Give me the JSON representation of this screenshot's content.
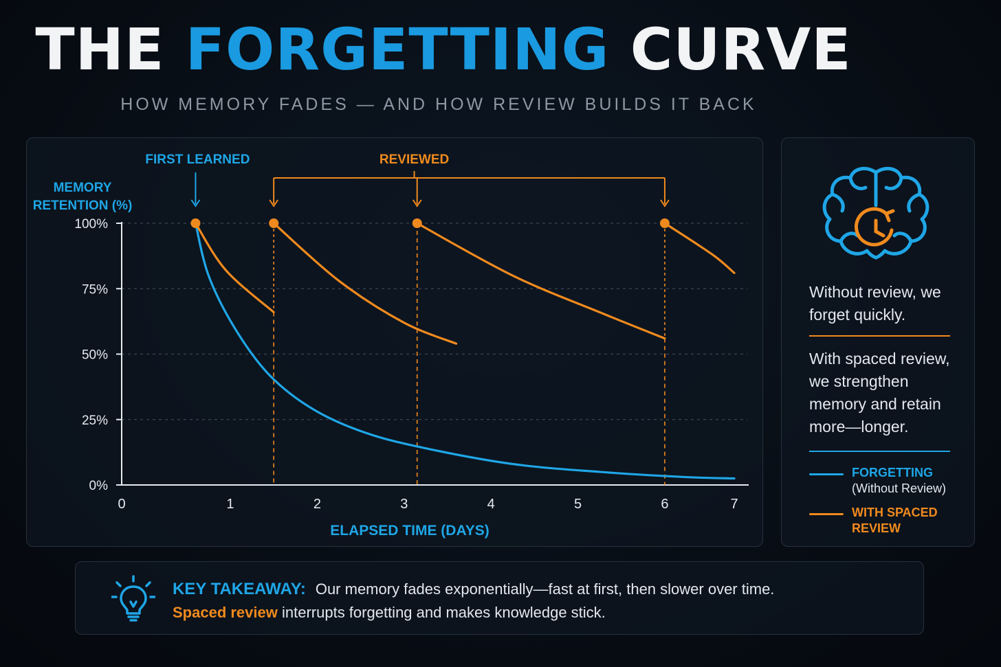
{
  "header": {
    "title_part1": "THE",
    "title_part2": "FORGETTING",
    "title_part3": "CURVE",
    "subtitle": "HOW MEMORY FADES — AND HOW REVIEW BUILDS IT BACK"
  },
  "chart_data": {
    "type": "line",
    "title": "",
    "ylabel_line1": "MEMORY",
    "ylabel_line2": "RETENTION (%)",
    "xlabel": "ELAPSED TIME (DAYS)",
    "xlim": [
      0,
      7.2
    ],
    "ylim": [
      0,
      100
    ],
    "x_ticks": [
      {
        "label": "0",
        "value": 0
      },
      {
        "label": "1",
        "value": 1.25
      },
      {
        "label": "2",
        "value": 2.25
      },
      {
        "label": "3",
        "value": 3.25
      },
      {
        "label": "4",
        "value": 4.25
      },
      {
        "label": "5",
        "value": 5.25
      },
      {
        "label": "6",
        "value": 6.25
      },
      {
        "label": "7",
        "value": 7.05
      }
    ],
    "y_ticks": [
      {
        "label": "0%",
        "value": 0
      },
      {
        "label": "25%",
        "value": 25
      },
      {
        "label": "50%",
        "value": 50
      },
      {
        "label": "75%",
        "value": 75
      },
      {
        "label": "100%",
        "value": 100
      }
    ],
    "grid": true,
    "series": [
      {
        "name": "FORGETTING",
        "color": "#1fa6e6",
        "segments": [
          {
            "x": [
              0.85,
              1.0,
              1.3,
              1.7,
              2.2,
              2.8,
              3.5,
              4.5,
              5.5,
              6.5,
              7.05
            ],
            "y": [
              100,
              80,
              60,
              42,
              29,
              20,
              14,
              8,
              5,
              3,
              2.5
            ]
          }
        ]
      },
      {
        "name": "WITH SPACED REVIEW",
        "color": "#f08a1e",
        "segments": [
          {
            "x": [
              0.85,
              1.2,
              1.75
            ],
            "y": [
              100,
              82,
              66
            ]
          },
          {
            "x": [
              1.75,
              2.5,
              3.25,
              3.85
            ],
            "y": [
              100,
              78,
              62,
              54
            ]
          },
          {
            "x": [
              3.4,
              4.5,
              5.5,
              6.25
            ],
            "y": [
              100,
              80,
              66,
              56
            ]
          },
          {
            "x": [
              6.25,
              6.8,
              7.05
            ],
            "y": [
              100,
              88,
              81
            ]
          }
        ]
      }
    ],
    "review_points": [
      {
        "x": 0.85,
        "y": 100
      },
      {
        "x": 1.75,
        "y": 100
      },
      {
        "x": 3.4,
        "y": 100
      },
      {
        "x": 6.25,
        "y": 100
      }
    ],
    "review_drop_lines": [
      {
        "x": 1.75,
        "y_from": 66
      },
      {
        "x": 3.4,
        "y_from": 100
      },
      {
        "x": 6.25,
        "y_from": 56
      }
    ],
    "annotations": {
      "first_learned": {
        "text": "FIRST LEARNED",
        "x": 0.85
      },
      "reviewed": {
        "text": "REVIEWED",
        "x_range": [
          1.75,
          6.25
        ],
        "arrows_x": [
          1.75,
          3.4,
          6.25
        ]
      }
    },
    "colors": {
      "forgetting": "#1fa6e6",
      "review": "#f08a1e",
      "axis": "#e6ebf0",
      "grid": "#3a4654"
    }
  },
  "side_panel": {
    "text_without": "Without review, we forget quickly.",
    "text_with": "With spaced review, we strengthen memory and retain more—longer.",
    "legend": [
      {
        "label": "FORGETTING",
        "sub": "(Without Review)",
        "color": "#1fa6e6"
      },
      {
        "label": "WITH SPACED",
        "label2": "REVIEW",
        "color": "#f08a1e"
      }
    ]
  },
  "takeaway": {
    "title": "KEY TAKEAWAY:",
    "line1": "Our memory fades exponentially—fast at first, then slower over time.",
    "highlight": "Spaced review",
    "line2_rest": " interrupts forgetting and makes knowledge stick."
  }
}
